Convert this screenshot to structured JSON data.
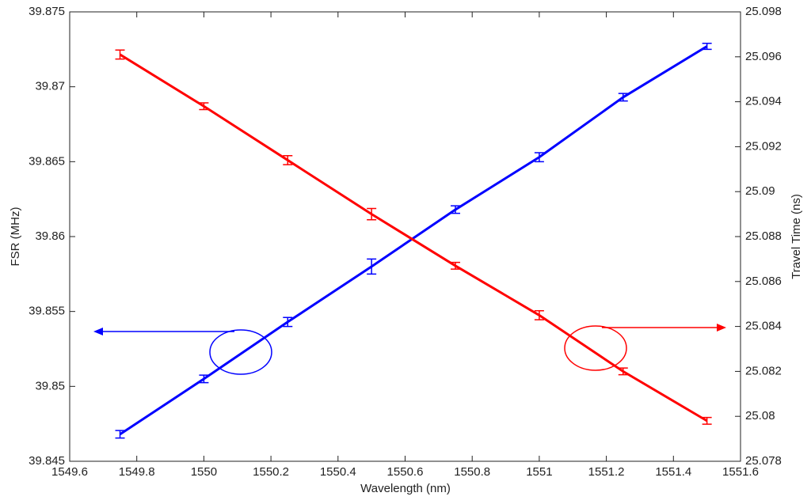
{
  "chart_data": {
    "type": "line",
    "xlabel": "Wavelength (nm)",
    "ylabel": "FSR (MHz)",
    "y2label": "Travel Time (ns)",
    "xlim": [
      1549.6,
      1551.6
    ],
    "xticks": [
      1549.6,
      1549.8,
      1550,
      1550.2,
      1550.4,
      1550.6,
      1550.8,
      1551,
      1551.2,
      1551.4,
      1551.6
    ],
    "ylim": [
      39.845,
      39.875
    ],
    "yticks": [
      39.845,
      39.85,
      39.855,
      39.86,
      39.865,
      39.87,
      39.875
    ],
    "y2lim": [
      25.078,
      25.098
    ],
    "y2ticks": [
      25.078,
      25.08,
      25.082,
      25.084,
      25.086,
      25.088,
      25.09,
      25.092,
      25.094,
      25.096,
      25.098
    ],
    "x": [
      1549.75,
      1550,
      1550.25,
      1550.5,
      1550.75,
      1551,
      1551.25,
      1551.5
    ],
    "series": [
      {
        "color": "#0000ff",
        "axis": "y",
        "values": [
          39.8468,
          39.8505,
          39.8543,
          39.858,
          39.8618,
          39.8653,
          39.8693,
          39.8727
        ],
        "errors": [
          0.00025,
          0.00025,
          0.0003,
          0.0005,
          0.00025,
          0.0003,
          0.00025,
          0.0002
        ]
      },
      {
        "color": "#ff0000",
        "axis": "y2",
        "values": [
          25.0961,
          25.0938,
          25.0914,
          25.089,
          25.0867,
          25.0845,
          25.082,
          25.0798
        ],
        "errors": [
          0.0002,
          0.00015,
          0.0002,
          0.00025,
          0.00015,
          0.0002,
          0.00015,
          0.00015
        ]
      }
    ]
  }
}
